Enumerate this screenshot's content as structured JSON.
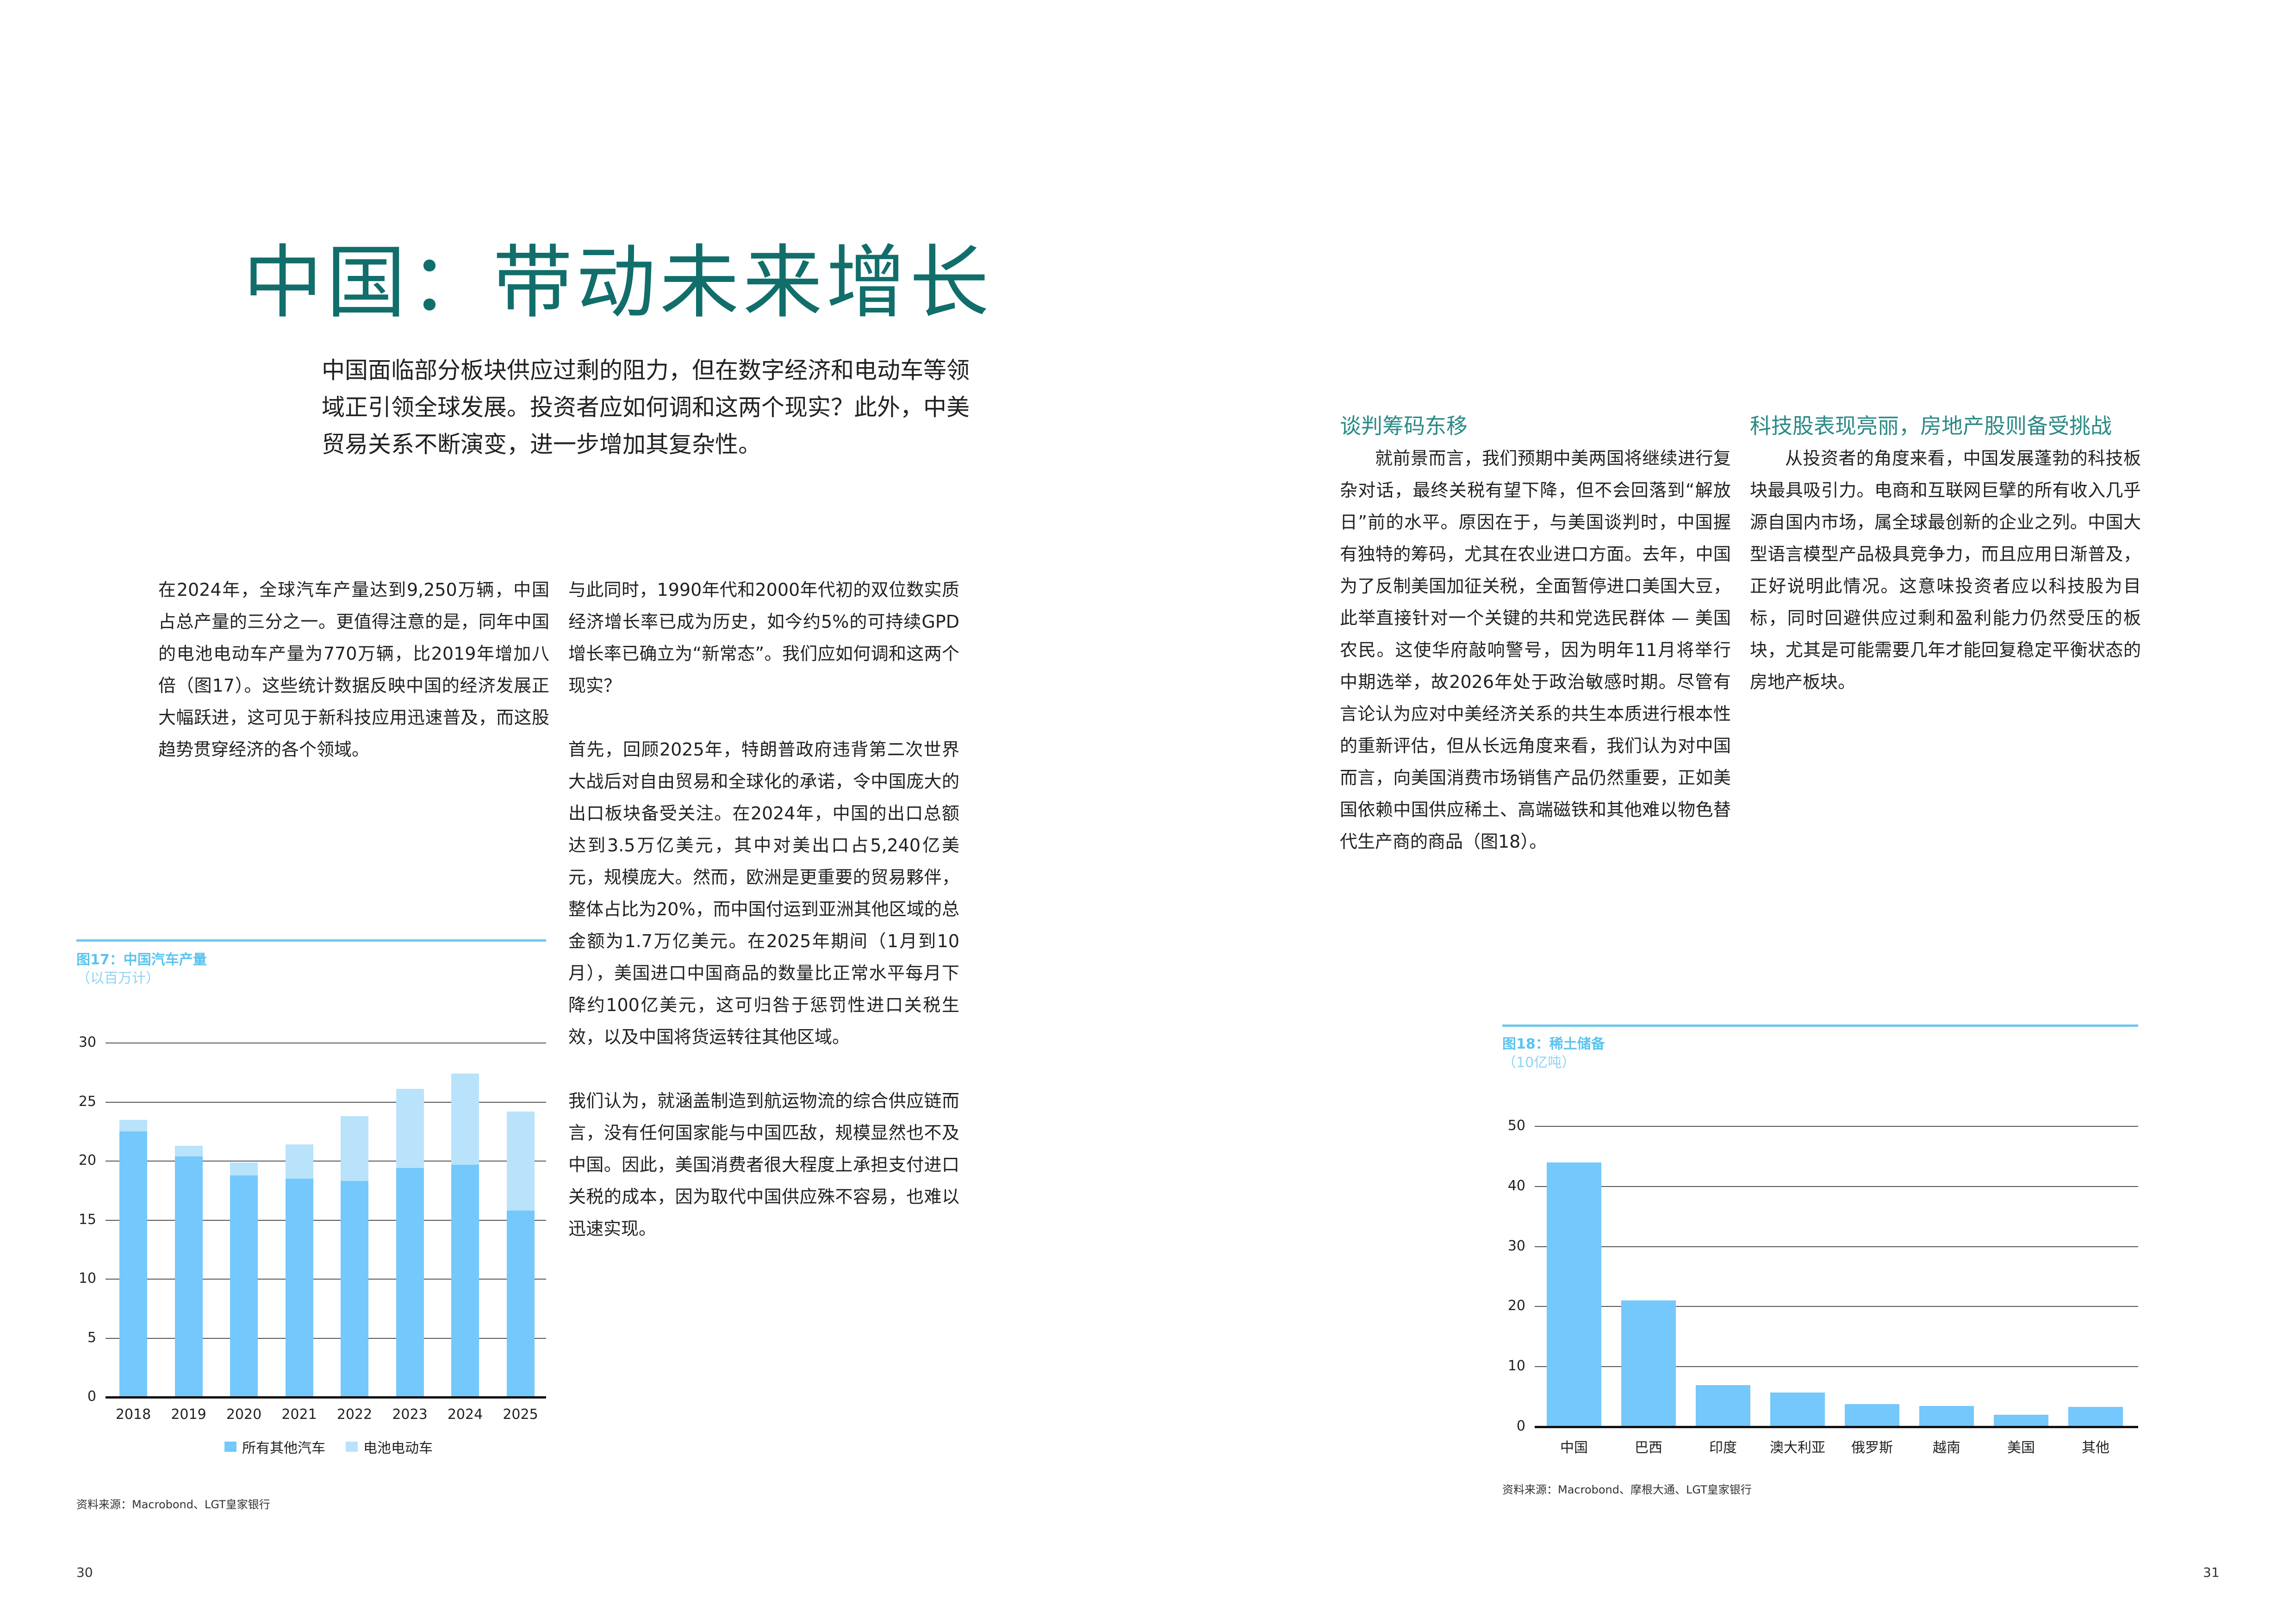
{
  "title": "中国：带动未来增长",
  "intro": "中国面临部分板块供应过剩的阻力，但在数字经济和电动车等领域正引领全球发展。投资者应如何调和这两个现实？此外，中美贸易关系不断演变，进一步增加其复杂性。",
  "left_column": [
    "在2024年，全球汽车产量达到9,250万辆，中国占总产量的三分之一。更值得注意的是，同年中国的电池电动车产量为770万辆，比2019年增加八倍（图17）。这些统计数据反映中国的经济发展正大幅跃进，这可见于新科技应用迅速普及，而这股趋势贯穿经济的各个领域。"
  ],
  "middle_column": [
    "与此同时，1990年代和2000年代初的双位数实质经济增长率已成为历史，如今约5%的可持续GPD增长率已确立为“新常态”。我们应如何调和这两个现实？",
    "首先，回顾2025年，特朗普政府违背第二次世界大战后对自由贸易和全球化的承诺，令中国庞大的出口板块备受关注。在2024年，中国的出口总额达到3.5万亿美元，其中对美出口占5,240亿美元，规模庞大。然而，欧洲是更重要的贸易夥伴，整体占比为20%，而中国付运到亚洲其他区域的总金额为1.7万亿美元。在2025年期间（1月到10月），美国进口中国商品的数量比正常水平每月下降约100亿美元，这可归咎于惩罚性进口关税生效，以及中国将货运转往其他区域。",
    "我们认为，就涵盖制造到航运物流的综合供应链而言，没有任何国家能与中国匹敌，规模显然也不及中国。因此，美国消费者很大程度上承担支付进口关税的成本，因为取代中国供应殊不容易，也难以迅速实现。"
  ],
  "right_sections": [
    {
      "heading": "谈判筹码东移",
      "body": "就前景而言，我们预期中美两国将继续进行复杂对话，最终关税有望下降，但不会回落到“解放日”前的水平。原因在于，与美国谈判时，中国握有独特的筹码，尤其在农业进口方面。去年，中国为了反制美国加征关税，全面暂停进口美国大豆，此举直接针对一个关键的共和党选民群体 — 美国农民。这使华府敲响警号，因为明年11月将举行中期选举，故2026年处于政治敏感时期。尽管有言论认为应对中美经济关系的共生本质进行根本性的重新评估，但从长远角度来看，我们认为对中国而言，向美国消费市场销售产品仍然重要，正如美国依赖中国供应稀土、高端磁铁和其他难以物色替代生产商的商品（图18）。"
    },
    {
      "heading": "科技股表现亮丽，房地产股则备受挑战",
      "body": "从投资者的角度来看，中国发展蓬勃的科技板块最具吸引力。电商和互联网巨擘的所有收入几乎源自国内市场，属全球最创新的企业之列。中国大型语言模型产品极具竞争力，而且应用日渐普及，正好说明此情况。这意味投资者应以科技股为目标，同时回避供应过剩和盈利能力仍然受压的板块，尤其是可能需要几年才能回复稳定平衡状态的房地产板块。"
    }
  ],
  "colors": {
    "title": "#116e6b",
    "subheading": "#2a8a86",
    "chart_title": "#5bc3ee",
    "bar_primary": "#74c8fb",
    "bar_secondary": "#b8e3fb"
  },
  "chart_data": [
    {
      "type": "bar",
      "stacked": true,
      "title": "图17：中国汽车产量",
      "subtitle": "（以百万计）",
      "categories": [
        "2018",
        "2019",
        "2020",
        "2021",
        "2022",
        "2023",
        "2024",
        "2025"
      ],
      "series": [
        {
          "name": "所有其他汽车",
          "values": [
            22.5,
            20.4,
            18.8,
            18.5,
            18.3,
            19.4,
            19.7,
            15.8
          ]
        },
        {
          "name": "电池电动车",
          "values": [
            1.0,
            0.9,
            1.1,
            2.9,
            5.5,
            6.7,
            7.7,
            8.4
          ]
        }
      ],
      "yticks": [
        0,
        5,
        10,
        15,
        20,
        25,
        30
      ],
      "ylim": [
        0,
        30
      ],
      "grid": true,
      "legend": "bottom",
      "source": "资料来源：Macrobond、LGT皇家银行"
    },
    {
      "type": "bar",
      "title": "图18：稀土储备",
      "subtitle": "（10亿吨）",
      "categories": [
        "中国",
        "巴西",
        "印度",
        "澳大利亚",
        "俄罗斯",
        "越南",
        "美国",
        "其他"
      ],
      "values": [
        44.0,
        21.0,
        6.9,
        5.7,
        3.8,
        3.5,
        2.0,
        3.3
      ],
      "yticks": [
        0,
        10,
        20,
        30,
        40,
        50
      ],
      "ylim": [
        0,
        50
      ],
      "grid": true,
      "source": "资料来源：Macrobond、摩根大通、LGT皇家银行"
    }
  ],
  "page_numbers": {
    "left": "30",
    "right": "31"
  }
}
